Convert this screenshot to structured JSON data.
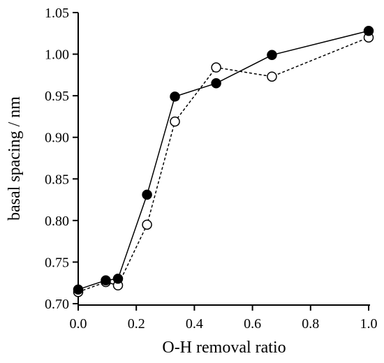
{
  "chart_data": {
    "type": "line",
    "title": "",
    "xlabel": "O-H removal ratio",
    "ylabel": "basal spacing / nm",
    "xlim": [
      0,
      1
    ],
    "ylim": [
      0.7,
      1.05
    ],
    "xticks": [
      "0.0",
      "0.2",
      "0.4",
      "0.6",
      "0.8",
      "1.0"
    ],
    "yticks": [
      "0.70",
      "0.75",
      "0.80",
      "0.85",
      "0.90",
      "0.95",
      "1.00",
      "1.05"
    ],
    "grid": false,
    "series": [
      {
        "marker": "filled-circle",
        "line": "solid",
        "color": "#000000",
        "x": [
          0.0,
          0.095,
          0.137,
          0.237,
          0.333,
          0.475,
          0.667,
          1.0
        ],
        "y": [
          0.717,
          0.728,
          0.73,
          0.831,
          0.949,
          0.965,
          0.999,
          1.028
        ]
      },
      {
        "marker": "open-circle",
        "line": "dashed",
        "color": "#000000",
        "x": [
          0.0,
          0.095,
          0.137,
          0.237,
          0.333,
          0.475,
          0.667,
          1.0
        ],
        "y": [
          0.714,
          0.726,
          0.722,
          0.795,
          0.919,
          0.984,
          0.973,
          1.02
        ]
      }
    ]
  }
}
